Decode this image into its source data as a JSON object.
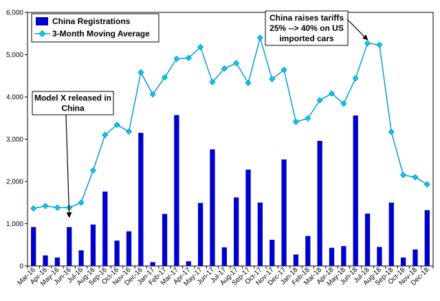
{
  "chart_data": {
    "type": "bar+line",
    "title": "",
    "xlabel": "",
    "ylabel": "",
    "ylim": [
      0,
      6000
    ],
    "y_ticks": [
      "0",
      "1,000",
      "2,000",
      "3,000",
      "4,000",
      "5,000",
      "6,000"
    ],
    "y_tick_values": [
      0,
      1000,
      2000,
      3000,
      4000,
      5000,
      6000
    ],
    "grid": false,
    "legend_position": "top-left",
    "categories": [
      "Mar-16",
      "Apr-16",
      "May-16",
      "Jun-16",
      "Jul-16",
      "Aug-16",
      "Sep-16",
      "Oct-16",
      "Nov-16",
      "Dec-16",
      "Jan-17",
      "Feb-17",
      "Mar-17",
      "Apr-17",
      "May-17",
      "Jun-17",
      "Jul-17",
      "Aug-17",
      "Sep-17",
      "Oct-17",
      "Nov-17",
      "Dec-17",
      "Jan-18",
      "Feb-18",
      "Mar-18",
      "Apr-18",
      "May-18",
      "Jun-18",
      "Jul-18",
      "Aug-18",
      "Sep-18",
      "Oct-18",
      "Nov-18",
      "Dec-18"
    ],
    "series": [
      {
        "name": "China Registrations",
        "kind": "bar",
        "color": "#0000cc",
        "values": [
          920,
          250,
          200,
          920,
          370,
          980,
          1760,
          600,
          820,
          3150,
          90,
          1230,
          3570,
          110,
          1490,
          2760,
          440,
          1620,
          2280,
          1500,
          620,
          2520,
          270,
          710,
          2960,
          430,
          470,
          3560,
          1240,
          450,
          1500,
          200,
          390,
          1320
        ]
      },
      {
        "name": "3-Month Moving Average",
        "kind": "line",
        "color": "#00ccff",
        "line_color": "#009fcc",
        "values": [
          1360,
          1420,
          1380,
          1380,
          1500,
          2260,
          3100,
          3340,
          3180,
          4580,
          4060,
          4460,
          4900,
          4920,
          5180,
          4350,
          4670,
          4800,
          4330,
          5400,
          4420,
          4640,
          3410,
          3490,
          3920,
          4080,
          3840,
          4440,
          5270,
          5230,
          3170,
          2150,
          2100,
          1930
        ]
      }
    ],
    "annotations": [
      {
        "lines": [
          "Model X released in",
          "China"
        ],
        "target_category": "Jun-16"
      },
      {
        "lines": [
          "China raises tariffs",
          "25% --> 40% on US",
          "imported cars"
        ],
        "target_category": "Jul-18"
      }
    ]
  }
}
